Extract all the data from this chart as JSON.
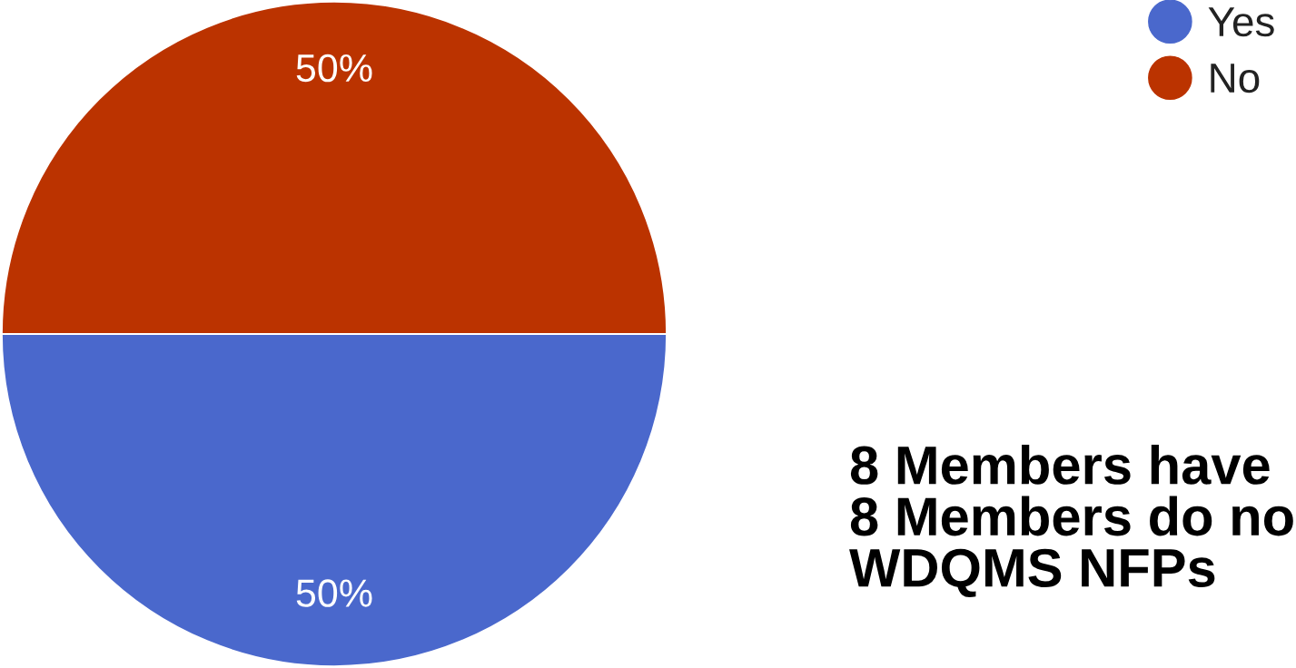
{
  "chart_data": {
    "type": "pie",
    "categories": [
      "Yes",
      "No"
    ],
    "values": [
      50,
      50
    ],
    "colors": [
      "#4a68cc",
      "#bb3300"
    ],
    "value_labels": [
      "50%",
      "50%"
    ],
    "legend": "top right",
    "annotations": [
      "8 Members have\n8 Members do no\nWDQMS NFPs"
    ]
  }
}
